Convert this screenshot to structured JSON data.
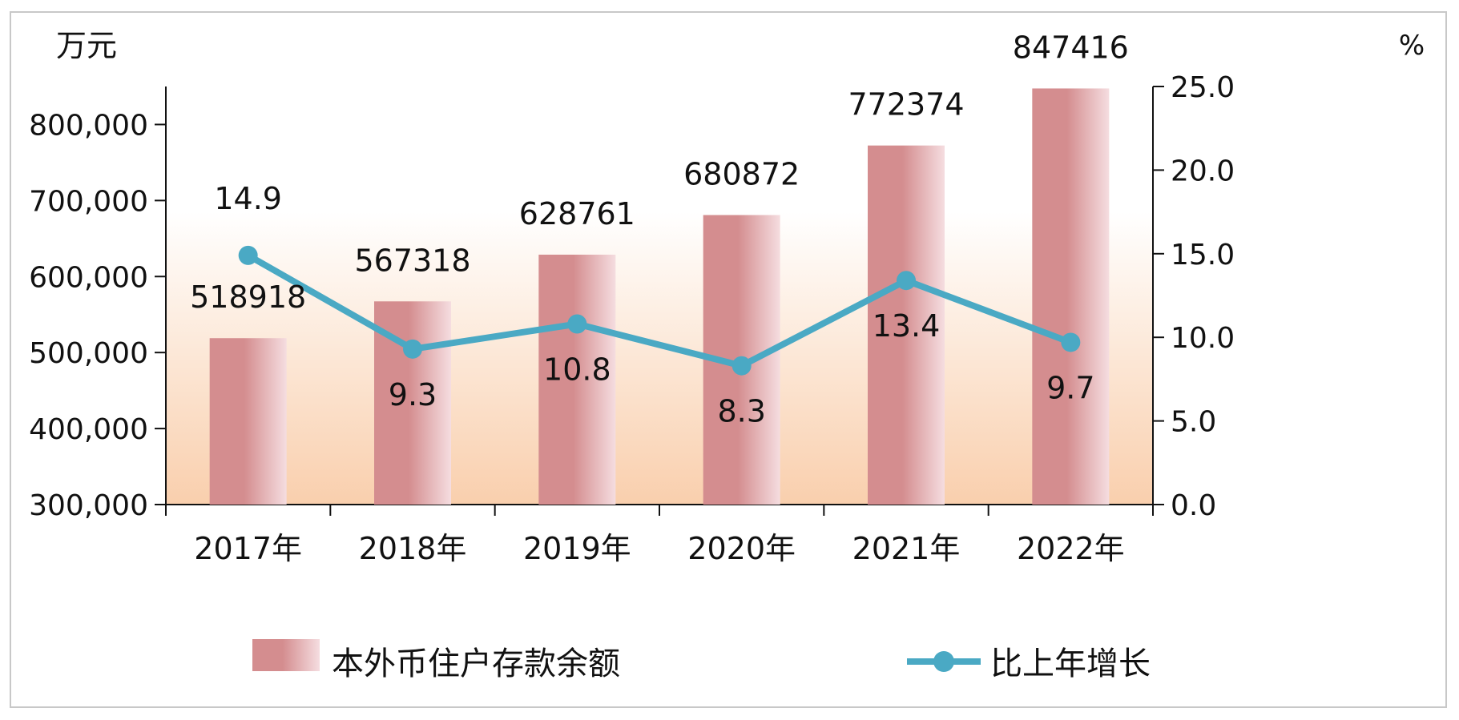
{
  "chart_data": {
    "type": "bar",
    "categories": [
      "2017年",
      "2018年",
      "2019年",
      "2020年",
      "2021年",
      "2022年"
    ],
    "series": [
      {
        "name": "本外币住户存款余额",
        "type": "bar",
        "axis": "left",
        "values": [
          518918,
          567318,
          628761,
          680872,
          772374,
          847416
        ],
        "labels": [
          "518918",
          "567318",
          "628761",
          "680872",
          "772374",
          "847416"
        ],
        "colors": {
          "dark": "#d48d8f",
          "light": "#f5dde0"
        }
      },
      {
        "name": "比上年增长",
        "type": "line",
        "axis": "right",
        "values": [
          14.9,
          9.3,
          10.8,
          8.3,
          13.4,
          9.7
        ],
        "labels": [
          "14.9",
          "9.3",
          "10.8",
          "8.3",
          "13.4",
          "9.7"
        ],
        "color": "#4aa9c4"
      }
    ],
    "ylabel": "万元",
    "y2label": "%",
    "ylim": [
      300000,
      850000
    ],
    "y2lim": [
      0,
      25
    ],
    "yticks": [
      "300,000",
      "400,000",
      "500,000",
      "600,000",
      "700,000",
      "800,000"
    ],
    "y2ticks": [
      "0.0",
      "5.0",
      "10.0",
      "15.0",
      "20.0",
      "25.0"
    ],
    "legend_position": "bottom",
    "background_gradient": {
      "top": "#ffffff",
      "bottom": "#f9cfad"
    },
    "grid": false
  }
}
